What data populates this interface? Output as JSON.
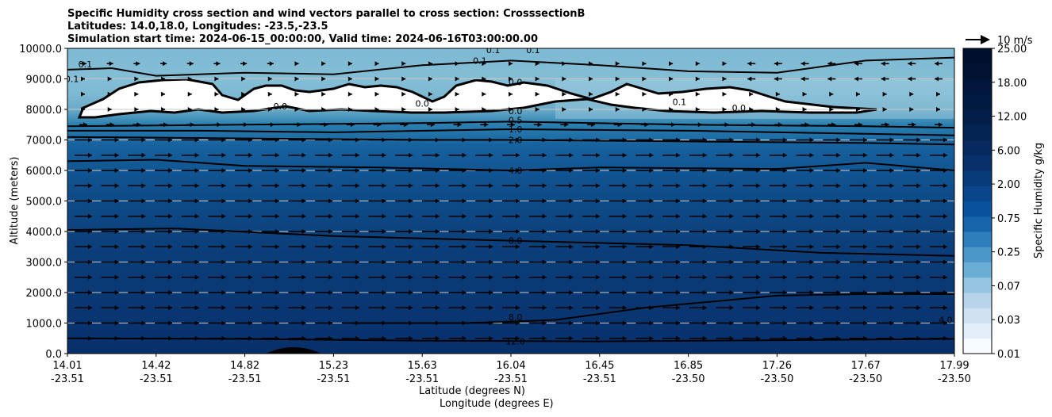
{
  "chart_data": {
    "type": "contour",
    "title_lines": [
      "Specific Humidity cross section and wind vectors parallel to cross section: CrosssectionB",
      "Latitudes: 14.0,18.0, Longitudes: -23.5,-23.5",
      "Simulation start time: 2024-06-15_00:00:00, Valid time: 2024-06-16T03:00:00.00"
    ],
    "ylabel": "Altitude (meters)",
    "xlabel_lat": "Latitude (degrees N)",
    "xlabel_lon": "Longitude (degrees E)",
    "ylim": [
      0,
      10000
    ],
    "y_ticks": [
      "0.0",
      "1000.0",
      "2000.0",
      "3000.0",
      "4000.0",
      "5000.0",
      "6000.0",
      "7000.0",
      "8000.0",
      "9000.0",
      "10000.0"
    ],
    "x_ticks": [
      {
        "lat": "14.01",
        "lon": "-23.51"
      },
      {
        "lat": "14.42",
        "lon": "-23.51"
      },
      {
        "lat": "14.82",
        "lon": "-23.51"
      },
      {
        "lat": "15.23",
        "lon": "-23.51"
      },
      {
        "lat": "15.63",
        "lon": "-23.51"
      },
      {
        "lat": "16.04",
        "lon": "-23.51"
      },
      {
        "lat": "16.45",
        "lon": "-23.51"
      },
      {
        "lat": "16.85",
        "lon": "-23.50"
      },
      {
        "lat": "17.26",
        "lon": "-23.50"
      },
      {
        "lat": "17.67",
        "lon": "-23.50"
      },
      {
        "lat": "17.99",
        "lon": "-23.50"
      }
    ],
    "colorbar_label": "Specific Humidity g/kg",
    "colorbar_ticks": [
      "0.01",
      "0.03",
      "0.07",
      "0.25",
      "0.75",
      "2.00",
      "6.00",
      "12.00",
      "18.00",
      "25.00"
    ],
    "wind_key_label": "10 m/s",
    "contour_labels": [
      {
        "text": "0.1",
        "alt": 9480,
        "frac": 0.02
      },
      {
        "text": "0.1",
        "alt": 9000,
        "frac": 0.005
      },
      {
        "text": "0.1",
        "alt": 9600,
        "frac": 0.465
      },
      {
        "text": "0.1",
        "alt": 9950,
        "frac": 0.48
      },
      {
        "text": "0.1",
        "alt": 9950,
        "frac": 0.525
      },
      {
        "text": "0.0",
        "alt": 8900,
        "frac": 0.505
      },
      {
        "text": "0.0",
        "alt": 8200,
        "frac": 0.4
      },
      {
        "text": "0.0",
        "alt": 8100,
        "frac": 0.24
      },
      {
        "text": "0.0",
        "alt": 8050,
        "frac": 0.757
      },
      {
        "text": "0.0",
        "alt": 7950,
        "frac": 0.505
      },
      {
        "text": "0.1",
        "alt": 8250,
        "frac": 0.69
      },
      {
        "text": "0.5",
        "alt": 7650,
        "frac": 0.505
      },
      {
        "text": "1.0",
        "alt": 7350,
        "frac": 0.505
      },
      {
        "text": "2.0",
        "alt": 7000,
        "frac": 0.505
      },
      {
        "text": "4.0",
        "alt": 6000,
        "frac": 0.505
      },
      {
        "text": "8.0",
        "alt": 3700,
        "frac": 0.505
      },
      {
        "text": "8.0",
        "alt": 1200,
        "frac": 0.505
      },
      {
        "text": "12.0",
        "alt": 400,
        "frac": 0.505
      },
      {
        "text": "4.0",
        "alt": 1100,
        "frac": 0.99
      }
    ],
    "contour_lines": [
      {
        "level": "12.0",
        "points": [
          [
            0,
            500
          ],
          [
            0.2,
            480
          ],
          [
            0.4,
            420
          ],
          [
            0.6,
            400
          ],
          [
            0.8,
            440
          ],
          [
            1,
            480
          ]
        ]
      },
      {
        "level": "8.0",
        "points": [
          [
            0.32,
            1000
          ],
          [
            0.45,
            1000
          ],
          [
            0.55,
            1100
          ],
          [
            0.65,
            1500
          ],
          [
            0.8,
            1900
          ],
          [
            0.9,
            1950
          ],
          [
            1,
            1950
          ]
        ]
      },
      {
        "level": "8.0",
        "points": [
          [
            0,
            4050
          ],
          [
            0.12,
            4100
          ],
          [
            0.3,
            3850
          ],
          [
            0.5,
            3700
          ],
          [
            0.7,
            3550
          ],
          [
            0.85,
            3300
          ],
          [
            1,
            3200
          ]
        ]
      },
      {
        "level": "4.0",
        "points": [
          [
            0,
            6300
          ],
          [
            0.1,
            6350
          ],
          [
            0.2,
            6150
          ],
          [
            0.35,
            6100
          ],
          [
            0.5,
            6000
          ],
          [
            0.6,
            6100
          ],
          [
            0.8,
            6050
          ],
          [
            0.9,
            6250
          ],
          [
            1,
            6000
          ]
        ]
      },
      {
        "level": "2.0",
        "points": [
          [
            0,
            7100
          ],
          [
            0.2,
            7050
          ],
          [
            0.4,
            7000
          ],
          [
            0.5,
            7000
          ],
          [
            0.7,
            6950
          ],
          [
            0.9,
            6900
          ],
          [
            1,
            6850
          ]
        ]
      },
      {
        "level": "1.0",
        "points": [
          [
            0,
            7300
          ],
          [
            0.15,
            7300
          ],
          [
            0.3,
            7250
          ],
          [
            0.5,
            7350
          ],
          [
            0.7,
            7300
          ],
          [
            0.9,
            7200
          ],
          [
            1,
            7150
          ]
        ]
      },
      {
        "level": "0.5",
        "points": [
          [
            0,
            7450
          ],
          [
            0.2,
            7500
          ],
          [
            0.4,
            7550
          ],
          [
            0.5,
            7600
          ],
          [
            0.7,
            7500
          ],
          [
            0.9,
            7450
          ],
          [
            1,
            7400
          ]
        ]
      },
      {
        "level": "0.1",
        "points": [
          [
            0,
            9300
          ],
          [
            0.05,
            9350
          ],
          [
            0.1,
            9100
          ],
          [
            0.2,
            9200
          ],
          [
            0.3,
            9150
          ],
          [
            0.4,
            9450
          ],
          [
            0.5,
            9600
          ],
          [
            0.6,
            9450
          ],
          [
            0.7,
            9250
          ],
          [
            0.8,
            9200
          ],
          [
            0.9,
            9600
          ],
          [
            1,
            9700
          ]
        ]
      }
    ]
  }
}
